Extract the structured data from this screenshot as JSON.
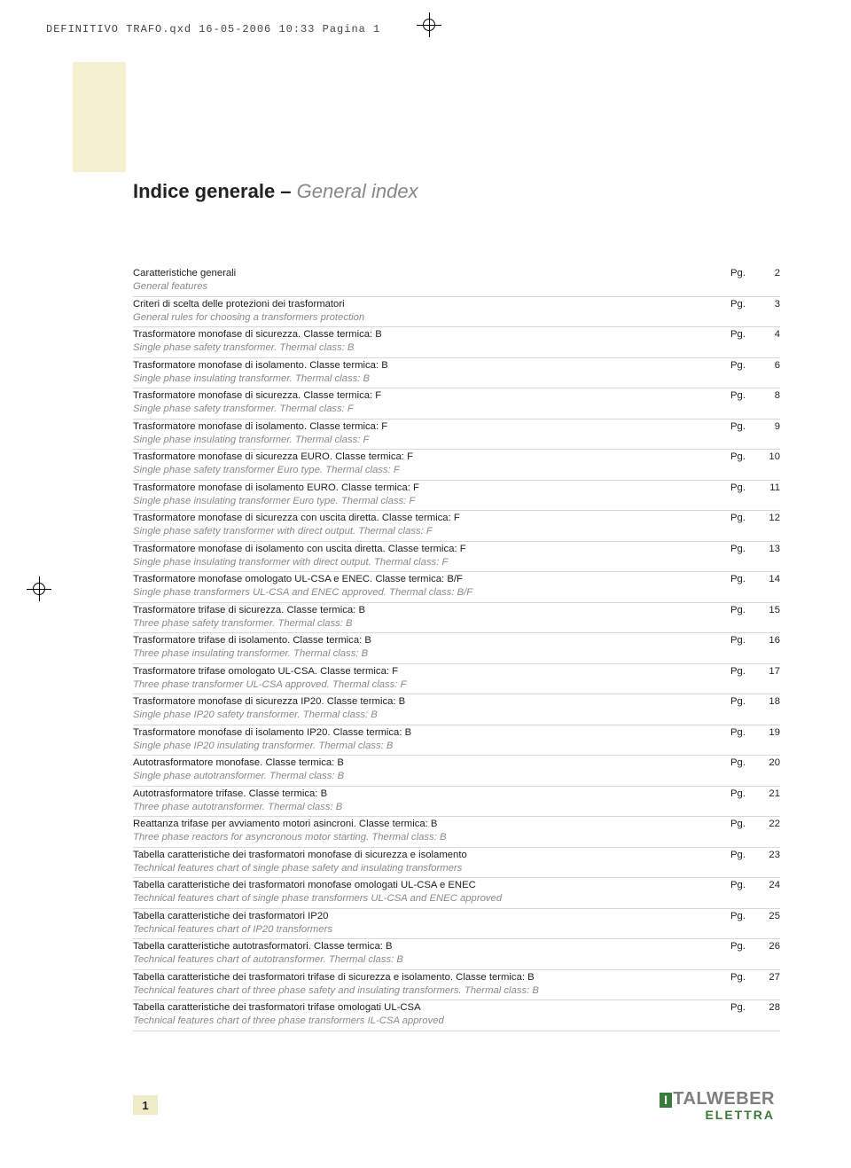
{
  "header": "DEFINITIVO TRAFO.qxd  16-05-2006  10:33  Pagina 1",
  "title_it": "Indice generale – ",
  "title_en": "General index",
  "pg_label": "Pg.",
  "page_number": "1",
  "logo_brand": "TALWEBER",
  "logo_sub": "ELETTRA",
  "rows": [
    {
      "it": "Caratteristiche generali",
      "en": "General features",
      "num": "2"
    },
    {
      "it": "Criteri di scelta delle protezioni dei trasformatori",
      "en": "General rules for choosing a transformers protection",
      "num": "3"
    },
    {
      "it": "Trasformatore monofase di sicurezza. Classe termica: B",
      "en": "Single phase safety transformer. Thermal class: B",
      "num": "4"
    },
    {
      "it": "Trasformatore monofase di isolamento. Classe termica: B",
      "en": "Single phase insulating transformer. Thermal class: B",
      "num": "6"
    },
    {
      "it": "Trasformatore monofase di sicurezza. Classe termica: F",
      "en": "Single phase safety transformer. Thermal class: F",
      "num": "8"
    },
    {
      "it": "Trasformatore monofase di isolamento. Classe termica: F",
      "en": "Single phase insulating transformer. Thermal class: F",
      "num": "9"
    },
    {
      "it": "Trasformatore monofase di sicurezza EURO. Classe termica: F",
      "en": "Single phase safety transformer Euro type. Thermal class: F",
      "num": "10"
    },
    {
      "it": "Trasformatore monofase di isolamento EURO. Classe termica: F",
      "en": "Single phase insulating transformer Euro type. Thermal class: F",
      "num": "11"
    },
    {
      "it": "Trasformatore monofase di sicurezza con uscita diretta. Classe termica: F",
      "en": "Single phase safety transformer with direct output. Thermal class: F",
      "num": "12"
    },
    {
      "it": "Trasformatore monofase di isolamento con uscita diretta. Classe termica: F",
      "en": "Single phase insulating transformer with direct output. Thermal class: F",
      "num": "13"
    },
    {
      "it": "Trasformatore monofase omologato UL-CSA e ENEC. Classe termica: B/F",
      "en": "Single phase transformers UL-CSA and ENEC approved. Thermal class: B/F",
      "num": "14"
    },
    {
      "it": "Trasformatore trifase di sicurezza. Classe termica: B",
      "en": "Three phase safety transformer. Thermal class: B",
      "num": "15"
    },
    {
      "it": "Trasformatore trifase di isolamento. Classe termica: B",
      "en": "Three phase insulating transformer. Thermal class: B",
      "num": "16"
    },
    {
      "it": "Trasformatore trifase omologato UL-CSA. Classe termica: F",
      "en": "Three phase transformer UL-CSA approved. Thermal class: F",
      "num": "17"
    },
    {
      "it": "Trasformatore monofase di sicurezza IP20. Classe termica: B",
      "en": "Single phase IP20 safety transformer. Thermal class: B",
      "num": "18"
    },
    {
      "it": "Trasformatore monofase di isolamento IP20. Classe termica: B",
      "en": "Single phase IP20 insulating transformer. Thermal class: B",
      "num": "19"
    },
    {
      "it": "Autotrasformatore monofase. Classe termica: B",
      "en": "Single phase autotransformer. Thermal class: B",
      "num": "20"
    },
    {
      "it": "Autotrasformatore trifase. Classe termica: B",
      "en": "Three phase autotransformer. Thermal class: B",
      "num": "21"
    },
    {
      "it": "Reattanza trifase per avviamento motori asincroni. Classe termica: B",
      "en": "Three phase reactors for asyncronous motor starting. Thermal class: B",
      "num": "22"
    },
    {
      "it": "Tabella caratteristiche dei trasformatori monofase di sicurezza e isolamento",
      "en": "Technical features chart of single phase safety and insulating transformers",
      "num": "23"
    },
    {
      "it": "Tabella caratteristiche dei trasformatori monofase omologati UL-CSA e ENEC",
      "en": "Technical features chart of single phase transformers UL-CSA and ENEC approved",
      "num": "24"
    },
    {
      "it": "Tabella caratteristiche dei trasformatori IP20",
      "en": "Technical features chart of IP20 transformers",
      "num": "25"
    },
    {
      "it": "Tabella caratteristiche autotrasformatori. Classe termica: B",
      "en": "Technical features chart of autotransformer. Thermal class: B",
      "num": "26"
    },
    {
      "it": "Tabella caratteristiche dei trasformatori trifase di sicurezza e isolamento. Classe termica: B",
      "en": "Technical features chart of three phase safety and insulating transformers. Thermal class: B",
      "num": "27"
    },
    {
      "it": "Tabella caratteristiche dei trasformatori trifase omologati UL-CSA",
      "en": "Technical features chart of three phase transformers IL-CSA approved",
      "num": "28"
    }
  ]
}
